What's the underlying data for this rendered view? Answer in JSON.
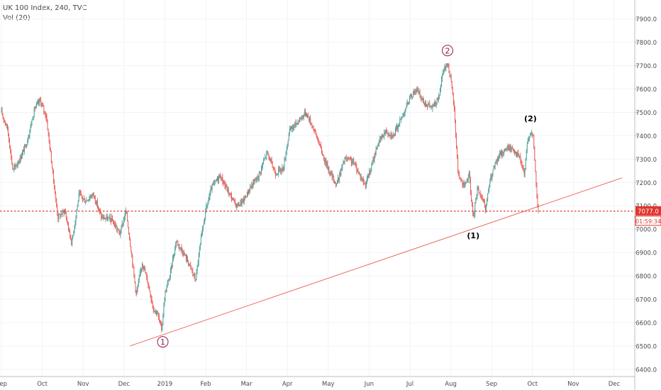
{
  "legend": {
    "symbol": "UK 100 Index, 240, TVC",
    "volume": "Vol (20)"
  },
  "colors": {
    "up": "#53a39a",
    "down": "#e8605a",
    "grid": "#f0f3fa",
    "axis_text": "#4a4a4a",
    "trendline": "#ef6b63",
    "price_line": "#e0352b",
    "wave_primary": "#8c1d4d",
    "wave_minor": "#000000"
  },
  "chart_data": {
    "type": "candlestick",
    "x_ticks": [
      "Sep",
      "Oct",
      "Nov",
      "Dec",
      "2019",
      "Feb",
      "Mar",
      "Apr",
      "May",
      "Jun",
      "Jul",
      "Aug",
      "Sep",
      "Oct",
      "Nov",
      "Dec"
    ],
    "y_ticks": [
      6400.0,
      6500.0,
      6600.0,
      6700.0,
      6800.0,
      6900.0,
      7000.0,
      7100.0,
      7200.0,
      7300.0,
      7400.0,
      7500.0,
      7600.0,
      7700.0,
      7800.0,
      7900.0
    ],
    "y_tick_labels": [
      "6400.0",
      "6500.0",
      "6600.0",
      "6700.0",
      "6800.0",
      "6900.0",
      "7000.0",
      "7100.0",
      "7200.0",
      "7300.0",
      "7400.0",
      "7500.0",
      "7600.0",
      "7700.0",
      "7800.0",
      "7900.0"
    ],
    "ylim": [
      6375,
      7975
    ],
    "x_range_months": [
      0,
      16
    ],
    "price_path": [
      [
        0.0,
        7500
      ],
      [
        0.15,
        7430
      ],
      [
        0.28,
        7250
      ],
      [
        0.45,
        7300
      ],
      [
        0.62,
        7370
      ],
      [
        0.82,
        7520
      ],
      [
        0.95,
        7550
      ],
      [
        1.1,
        7480
      ],
      [
        1.25,
        7250
      ],
      [
        1.38,
        7050
      ],
      [
        1.55,
        7080
      ],
      [
        1.72,
        6940
      ],
      [
        1.9,
        7150
      ],
      [
        2.05,
        7120
      ],
      [
        2.25,
        7150
      ],
      [
        2.45,
        7050
      ],
      [
        2.7,
        7040
      ],
      [
        2.9,
        6980
      ],
      [
        3.05,
        7080
      ],
      [
        3.18,
        6900
      ],
      [
        3.3,
        6720
      ],
      [
        3.45,
        6860
      ],
      [
        3.6,
        6760
      ],
      [
        3.72,
        6660
      ],
      [
        3.82,
        6640
      ],
      [
        3.92,
        6570
      ],
      [
        4.0,
        6720
      ],
      [
        4.12,
        6800
      ],
      [
        4.28,
        6950
      ],
      [
        4.45,
        6900
      ],
      [
        4.6,
        6850
      ],
      [
        4.75,
        6780
      ],
      [
        4.88,
        6950
      ],
      [
        5.0,
        7080
      ],
      [
        5.15,
        7180
      ],
      [
        5.35,
        7230
      ],
      [
        5.55,
        7160
      ],
      [
        5.75,
        7100
      ],
      [
        5.92,
        7120
      ],
      [
        6.1,
        7180
      ],
      [
        6.3,
        7230
      ],
      [
        6.5,
        7330
      ],
      [
        6.7,
        7240
      ],
      [
        6.9,
        7260
      ],
      [
        7.05,
        7420
      ],
      [
        7.25,
        7460
      ],
      [
        7.45,
        7500
      ],
      [
        7.62,
        7440
      ],
      [
        7.75,
        7380
      ],
      [
        7.9,
        7300
      ],
      [
        8.05,
        7240
      ],
      [
        8.2,
        7190
      ],
      [
        8.4,
        7300
      ],
      [
        8.6,
        7290
      ],
      [
        8.75,
        7240
      ],
      [
        8.9,
        7190
      ],
      [
        9.05,
        7260
      ],
      [
        9.2,
        7360
      ],
      [
        9.4,
        7420
      ],
      [
        9.6,
        7400
      ],
      [
        9.8,
        7480
      ],
      [
        10.0,
        7560
      ],
      [
        10.15,
        7600
      ],
      [
        10.35,
        7540
      ],
      [
        10.55,
        7520
      ],
      [
        10.7,
        7560
      ],
      [
        10.82,
        7680
      ],
      [
        10.92,
        7710
      ],
      [
        11.0,
        7640
      ],
      [
        11.08,
        7520
      ],
      [
        11.18,
        7240
      ],
      [
        11.32,
        7180
      ],
      [
        11.45,
        7230
      ],
      [
        11.55,
        7040
      ],
      [
        11.65,
        7180
      ],
      [
        11.75,
        7140
      ],
      [
        11.85,
        7080
      ],
      [
        11.95,
        7200
      ],
      [
        12.05,
        7260
      ],
      [
        12.2,
        7320
      ],
      [
        12.4,
        7350
      ],
      [
        12.55,
        7340
      ],
      [
        12.7,
        7300
      ],
      [
        12.8,
        7230
      ],
      [
        12.88,
        7380
      ],
      [
        12.95,
        7420
      ],
      [
        13.02,
        7390
      ],
      [
        13.08,
        7220
      ],
      [
        13.12,
        7100
      ],
      [
        13.15,
        7077
      ]
    ],
    "last_price": "7077.0",
    "countdown": "01:59:34",
    "current_price_level": 7077,
    "trendline": {
      "from": [
        3.15,
        6500
      ],
      "to": [
        15.2,
        7220
      ]
    },
    "annotations": [
      {
        "label": "1",
        "style": "circled",
        "x": 3.95,
        "y": 6560
      },
      {
        "label": "2",
        "style": "circled",
        "x": 10.92,
        "y": 7710
      },
      {
        "label": "(1)",
        "style": "plain",
        "x": 11.55,
        "y": 7040
      },
      {
        "label": "(2)",
        "style": "plain",
        "x": 12.95,
        "y": 7425
      }
    ]
  }
}
